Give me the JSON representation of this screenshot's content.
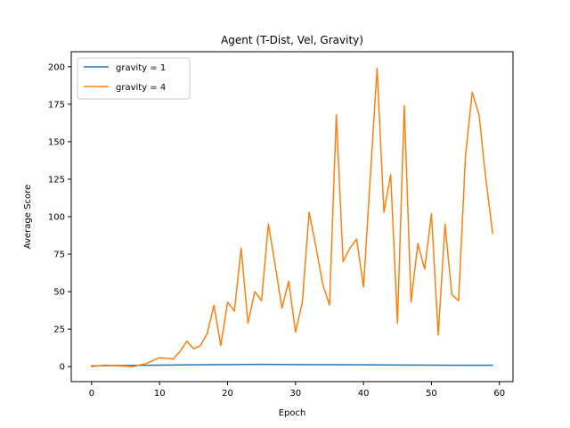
{
  "chart_data": {
    "type": "line",
    "title": "Agent (T-Dist, Vel, Gravity)",
    "xlabel": "Epoch",
    "ylabel": "Average Score",
    "xlim": [
      -3,
      62
    ],
    "ylim": [
      -10,
      210
    ],
    "xticks": [
      0,
      10,
      20,
      30,
      40,
      50,
      60
    ],
    "yticks": [
      0,
      25,
      50,
      75,
      100,
      125,
      150,
      175,
      200
    ],
    "grid": false,
    "legend_position": "top-left",
    "series": [
      {
        "name": "gravity = 1",
        "color": "#1f77b4",
        "x": [
          0,
          5,
          10,
          15,
          20,
          25,
          30,
          35,
          40,
          45,
          50,
          55,
          59
        ],
        "y": [
          0.5,
          0.8,
          1.0,
          1.2,
          1.4,
          1.5,
          1.4,
          1.3,
          1.2,
          1.1,
          1.0,
          0.9,
          0.9
        ]
      },
      {
        "name": "gravity = 4",
        "color": "#ff7f0e",
        "x": [
          0,
          2,
          4,
          6,
          8,
          10,
          12,
          13,
          14,
          15,
          16,
          17,
          18,
          19,
          20,
          21,
          22,
          23,
          24,
          25,
          26,
          27,
          28,
          29,
          30,
          31,
          32,
          33,
          34,
          35,
          36,
          37,
          38,
          39,
          40,
          41,
          42,
          43,
          44,
          45,
          46,
          47,
          48,
          49,
          50,
          51,
          52,
          53,
          54,
          55,
          56,
          57,
          58,
          59
        ],
        "y": [
          0,
          1,
          0.5,
          0,
          2,
          6,
          5,
          10,
          17,
          12,
          14,
          22,
          41,
          14,
          43,
          37,
          79,
          29,
          50,
          44,
          95,
          68,
          39,
          57,
          23,
          43,
          103,
          80,
          55,
          41,
          168,
          70,
          79,
          85,
          53,
          126,
          199,
          103,
          128,
          29,
          174,
          43,
          82,
          65,
          102,
          21,
          95,
          48,
          44,
          140,
          183,
          168,
          125,
          89
        ]
      }
    ]
  }
}
